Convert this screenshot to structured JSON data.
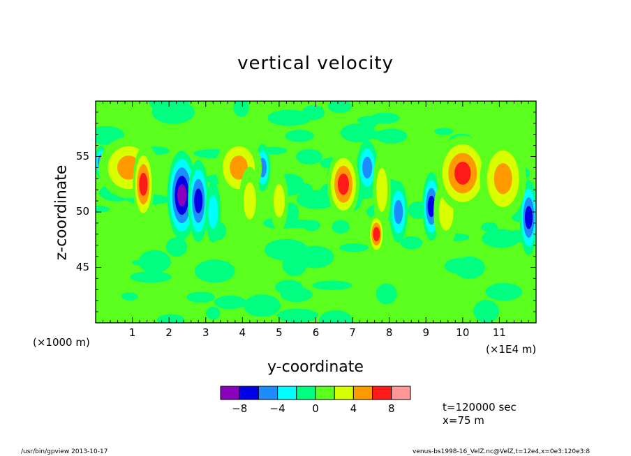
{
  "chart_data": {
    "type": "heatmap",
    "title": "vertical velocity",
    "xlabel": "y-coordinate",
    "ylabel": "z-coordinate",
    "x_unit_label": "(×1000 m)",
    "x_exponent_label": "(×1E4 m)",
    "xlim": [
      0,
      12
    ],
    "ylim": [
      40,
      60
    ],
    "x_ticks": [
      "1",
      "2",
      "3",
      "4",
      "5",
      "6",
      "7",
      "8",
      "9",
      "10",
      "11"
    ],
    "y_ticks": [
      "45",
      "50",
      "55"
    ],
    "colorbar": {
      "levels": [
        -10,
        -8,
        -6,
        -4,
        -2,
        0,
        2,
        4,
        6,
        8,
        10
      ],
      "labels": [
        "−8",
        "−4",
        "0",
        "4",
        "8"
      ],
      "colors": [
        "#8a00bd",
        "#0000e6",
        "#1e8cff",
        "#00ffff",
        "#00ff80",
        "#5aff1e",
        "#d8ff00",
        "#ff9900",
        "#ff1a1a",
        "#ff9999"
      ]
    },
    "field_features": [
      {
        "sign": "negative",
        "y_center": 2.35,
        "z_center": 51.5,
        "magnitude": 8.5
      },
      {
        "sign": "negative",
        "y_center": 2.8,
        "z_center": 51,
        "magnitude": 7.5
      },
      {
        "sign": "negative",
        "y_center": 3.2,
        "z_center": 50,
        "magnitude": 3.5
      },
      {
        "sign": "negative",
        "y_center": 4.55,
        "z_center": 54,
        "magnitude": 5
      },
      {
        "sign": "negative",
        "y_center": 7.4,
        "z_center": 54,
        "magnitude": 5
      },
      {
        "sign": "negative",
        "y_center": 8.25,
        "z_center": 50,
        "magnitude": 5
      },
      {
        "sign": "negative",
        "y_center": 9.15,
        "z_center": 50.5,
        "magnitude": 6.5
      },
      {
        "sign": "negative",
        "y_center": 11.8,
        "z_center": 49.5,
        "magnitude": 7
      },
      {
        "sign": "negative",
        "y_center": 0.15,
        "z_center": 54.5,
        "magnitude": 4.5
      },
      {
        "sign": "positive",
        "y_center": 0.9,
        "z_center": 54,
        "magnitude": 4.5
      },
      {
        "sign": "positive",
        "y_center": 1.3,
        "z_center": 52.5,
        "magnitude": 6.5
      },
      {
        "sign": "positive",
        "y_center": 3.9,
        "z_center": 54,
        "magnitude": 4.5
      },
      {
        "sign": "positive",
        "y_center": 4.2,
        "z_center": 51,
        "magnitude": 4
      },
      {
        "sign": "positive",
        "y_center": 5.0,
        "z_center": 51,
        "magnitude": 3.5
      },
      {
        "sign": "positive",
        "y_center": 6.75,
        "z_center": 52.5,
        "magnitude": 6.5
      },
      {
        "sign": "positive",
        "y_center": 7.8,
        "z_center": 52,
        "magnitude": 4
      },
      {
        "sign": "positive",
        "y_center": 7.65,
        "z_center": 48,
        "magnitude": 6.5
      },
      {
        "sign": "positive",
        "y_center": 9.55,
        "z_center": 50,
        "magnitude": 3.5
      },
      {
        "sign": "positive",
        "y_center": 10.0,
        "z_center": 53.5,
        "magnitude": 7.5
      },
      {
        "sign": "positive",
        "y_center": 11.1,
        "z_center": 53,
        "magnitude": 5
      }
    ]
  },
  "info": {
    "time": "t=120000 sec",
    "position": "x=75 m"
  },
  "footer": {
    "left": "/usr/bin/gpview   2013-10-17",
    "right": "venus-bs1998-16_VelZ.nc@VelZ,t=12e4,x=0e3:120e3:8"
  }
}
